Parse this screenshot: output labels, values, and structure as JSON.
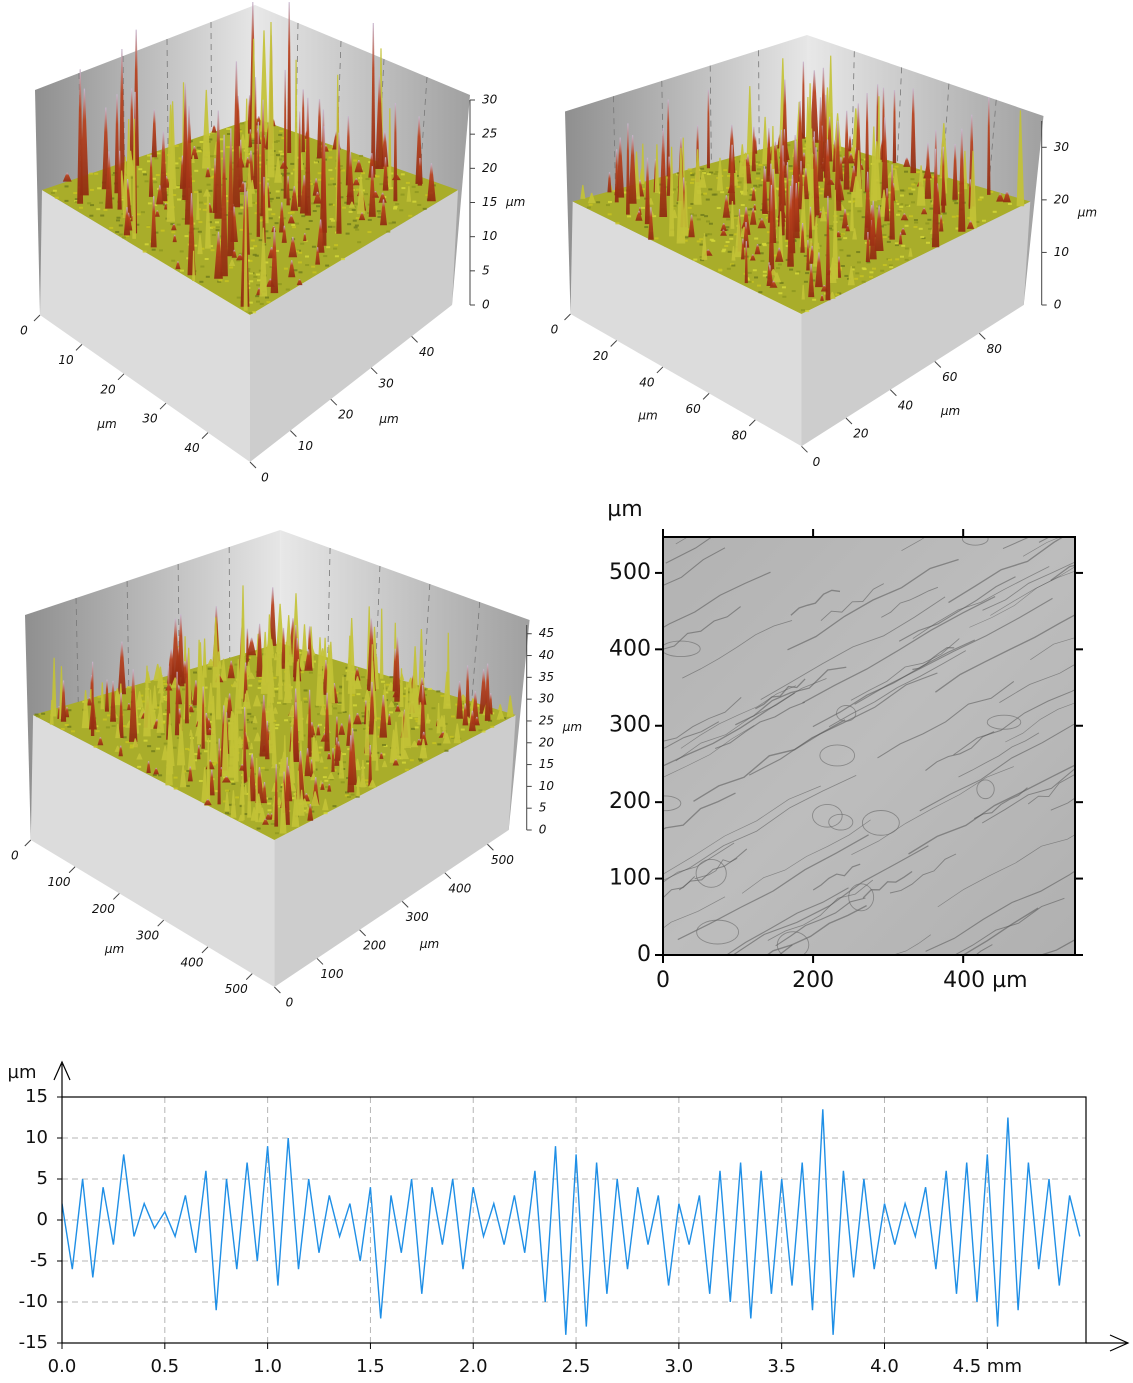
{
  "chart_data": [
    {
      "type": "surface3d",
      "xlim": [
        0,
        50
      ],
      "ylim": [
        0,
        50
      ],
      "zlim": [
        0,
        30
      ],
      "xticks": [
        0,
        10,
        20,
        30,
        40
      ],
      "yticks": [
        0,
        10,
        20,
        30,
        40
      ],
      "zticks": [
        0,
        5,
        10,
        15,
        20,
        25,
        30
      ],
      "xlabel": "µm",
      "ylabel": "µm",
      "zlabel": "µm"
    },
    {
      "type": "surface3d",
      "xlim": [
        0,
        100
      ],
      "ylim": [
        0,
        100
      ],
      "zlim": [
        0,
        35
      ],
      "xticks": [
        0,
        20,
        40,
        60,
        80
      ],
      "yticks": [
        0,
        20,
        40,
        60,
        80
      ],
      "zticks": [
        0,
        10,
        20,
        30
      ],
      "xlabel": "µm",
      "ylabel": "µm",
      "zlabel": "µm"
    },
    {
      "type": "surface3d",
      "xlim": [
        0,
        550
      ],
      "ylim": [
        0,
        550
      ],
      "zlim": [
        0,
        47
      ],
      "xticks": [
        0,
        100,
        200,
        300,
        400,
        500
      ],
      "yticks": [
        0,
        100,
        200,
        300,
        400,
        500
      ],
      "zticks": [
        0,
        5,
        10,
        15,
        20,
        25,
        30,
        35,
        40,
        45
      ],
      "xlabel": "µm",
      "ylabel": "µm",
      "zlabel": "µm"
    },
    {
      "type": "image",
      "xlim": [
        0,
        549
      ],
      "ylim": [
        0,
        547
      ],
      "xticks": [
        0,
        200,
        {
          "value": 400,
          "label": "400 µm"
        }
      ],
      "yticks": [
        0,
        100,
        200,
        300,
        400,
        500
      ],
      "ylabel": "µm"
    },
    {
      "type": "line",
      "xlim": [
        0,
        4.98
      ],
      "ylim": [
        -15,
        15
      ],
      "ylabel": "µm",
      "color": "#1f8fe6",
      "grid": true,
      "xticks": [
        {
          "value": 0,
          "label": "0.0"
        },
        0.5,
        {
          "value": 1,
          "label": "1.0"
        },
        1.5,
        {
          "value": 2,
          "label": "2.0"
        },
        2.5,
        {
          "value": 3,
          "label": "3.0"
        },
        3.5,
        {
          "value": 4,
          "label": "4.0"
        },
        {
          "value": 4.5,
          "label": "4.5 mm"
        }
      ],
      "yticks": [
        -15,
        -10,
        -5,
        0,
        5,
        10,
        15
      ],
      "x": [
        0,
        0.05,
        0.1,
        0.15,
        0.2,
        0.25,
        0.3,
        0.35,
        0.4,
        0.45,
        0.5,
        0.55,
        0.6,
        0.65,
        0.7,
        0.75,
        0.8,
        0.85,
        0.9,
        0.95,
        1,
        1.05,
        1.1,
        1.15,
        1.2,
        1.25,
        1.3,
        1.35,
        1.4,
        1.45,
        1.5,
        1.55,
        1.6,
        1.65,
        1.7,
        1.75,
        1.8,
        1.85,
        1.9,
        1.95,
        2,
        2.05,
        2.1,
        2.15,
        2.2,
        2.25,
        2.3,
        2.35,
        2.4,
        2.45,
        2.5,
        2.55,
        2.6,
        2.65,
        2.7,
        2.75,
        2.8,
        2.85,
        2.9,
        2.95,
        3,
        3.05,
        3.1,
        3.15,
        3.2,
        3.25,
        3.3,
        3.35,
        3.4,
        3.45,
        3.5,
        3.55,
        3.6,
        3.65,
        3.7,
        3.75,
        3.8,
        3.85,
        3.9,
        3.95,
        4,
        4.05,
        4.1,
        4.15,
        4.2,
        4.25,
        4.3,
        4.35,
        4.4,
        4.45,
        4.5,
        4.55,
        4.6,
        4.65,
        4.7,
        4.75,
        4.8,
        4.85,
        4.9,
        4.95
      ],
      "values": [
        2,
        -6,
        5,
        -7,
        4,
        -3,
        8,
        -2,
        2,
        -1,
        1,
        -2,
        3,
        -4,
        6,
        -11,
        5,
        -6,
        7,
        -5,
        9,
        -8,
        10,
        -6,
        5,
        -4,
        3,
        -2,
        2,
        -5,
        4,
        -12,
        3,
        -4,
        5,
        -9,
        4,
        -3,
        5,
        -6,
        4,
        -2,
        2,
        -3,
        3,
        -4,
        6,
        -10,
        9,
        -14,
        8,
        -13,
        7,
        -9,
        5,
        -6,
        4,
        -3,
        3,
        -8,
        2,
        -3,
        3,
        -9,
        6,
        -10,
        7,
        -12,
        6,
        -9,
        5,
        -8,
        7,
        -11,
        13.5,
        -14,
        6,
        -7,
        5,
        -6,
        2,
        -3,
        2,
        -2,
        4,
        -6,
        6,
        -9,
        7,
        -10,
        8,
        -13,
        12.5,
        -11,
        7,
        -6,
        5,
        -8,
        3,
        -2
      ]
    }
  ]
}
